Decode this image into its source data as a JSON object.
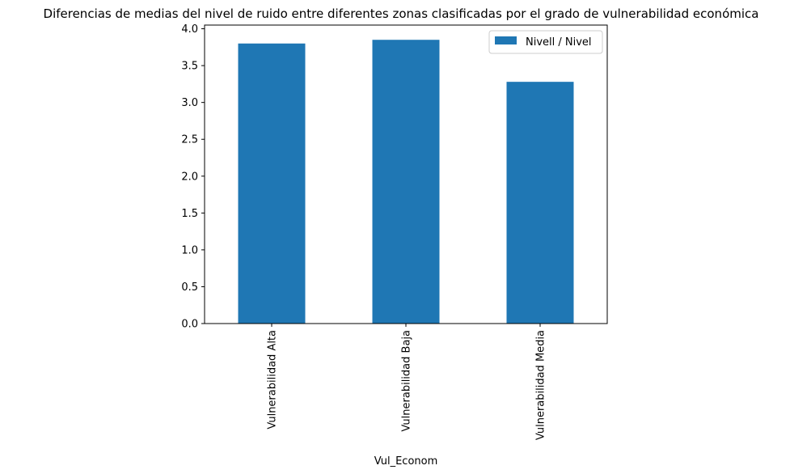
{
  "chart_data": {
    "type": "bar",
    "title": "Diferencias de medias del nivel de ruido entre diferentes zonas clasificadas por el grado de vulnerabilidad económica",
    "xlabel": "Vul_Econom",
    "ylabel": "",
    "categories": [
      "Vulnerabilidad Alta",
      "Vulnerabilidad Baja",
      "Vulnerabilidad Media"
    ],
    "series": [
      {
        "name": "Nivell / Nivel",
        "values": [
          3.8,
          3.85,
          3.28
        ],
        "color": "#1f77b4"
      }
    ],
    "ylim": [
      0,
      4.05
    ],
    "yticks": [
      "0.0",
      "0.5",
      "1.0",
      "1.5",
      "2.0",
      "2.5",
      "3.0",
      "3.5",
      "4.0"
    ],
    "grid": false,
    "legend_position": "upper right"
  }
}
